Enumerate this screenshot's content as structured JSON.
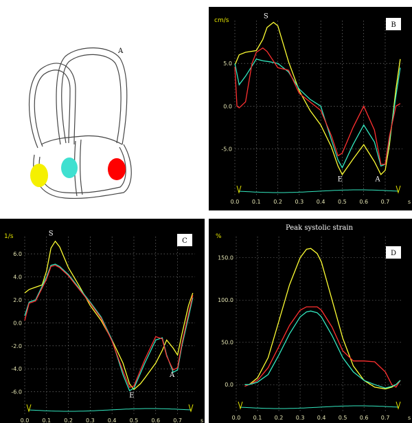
{
  "figure": {
    "panel_a": {
      "label": "A",
      "segment_colors": [
        "#f5f000",
        "#40e0d0",
        "#ff0000"
      ]
    },
    "panel_b": {
      "label": "B"
    },
    "panel_c": {
      "label": "C"
    },
    "panel_d": {
      "label": "D"
    }
  },
  "chart_data": [
    {
      "panel": "B",
      "type": "line",
      "title": "",
      "ylabel": "cm/s",
      "xlabel": "s",
      "xlim": [
        0,
        0.78
      ],
      "ylim": [
        -8.5,
        10
      ],
      "x_ticks": [
        0.0,
        0.1,
        0.2,
        0.3,
        0.4,
        0.5,
        0.6,
        0.7
      ],
      "y_ticks": [
        -5.0,
        0.0,
        5.0
      ],
      "annotations": [
        {
          "text": "S",
          "x": 0.145,
          "y": 10.3
        },
        {
          "text": "E",
          "x": 0.49,
          "y": -8.8
        },
        {
          "text": "A",
          "x": 0.665,
          "y": -8.8
        }
      ],
      "series": [
        {
          "color": "#ffff33",
          "x": [
            0,
            0.02,
            0.05,
            0.1,
            0.13,
            0.15,
            0.18,
            0.2,
            0.25,
            0.3,
            0.35,
            0.4,
            0.45,
            0.48,
            0.5,
            0.55,
            0.6,
            0.65,
            0.68,
            0.7,
            0.72,
            0.75,
            0.77
          ],
          "y": [
            4.8,
            6,
            6.3,
            6.5,
            7.8,
            9.2,
            9.8,
            9.4,
            5.2,
            1.8,
            -0.5,
            -2.2,
            -4.8,
            -7,
            -8,
            -6.2,
            -4.5,
            -6.5,
            -8,
            -7.5,
            -4.5,
            2,
            5.5
          ]
        },
        {
          "color": "#33e8c0",
          "x": [
            0,
            0.02,
            0.05,
            0.1,
            0.13,
            0.16,
            0.2,
            0.25,
            0.3,
            0.35,
            0.4,
            0.45,
            0.48,
            0.5,
            0.55,
            0.6,
            0.65,
            0.68,
            0.7,
            0.72,
            0.75,
            0.77
          ],
          "y": [
            5,
            2.5,
            3.5,
            5.5,
            5.3,
            5.2,
            5,
            4,
            2,
            0.8,
            0,
            -4,
            -6.3,
            -7.2,
            -4.5,
            -2.2,
            -4.2,
            -7,
            -6.8,
            -4,
            1.2,
            4.5
          ]
        },
        {
          "color": "#ff3030",
          "x": [
            0,
            0.01,
            0.02,
            0.05,
            0.08,
            0.1,
            0.13,
            0.15,
            0.2,
            0.25,
            0.3,
            0.35,
            0.4,
            0.45,
            0.48,
            0.5,
            0.55,
            0.6,
            0.65,
            0.68,
            0.7,
            0.72,
            0.75,
            0.77
          ],
          "y": [
            4.6,
            0,
            -0.2,
            0.5,
            5,
            6.3,
            6.8,
            6.4,
            4.5,
            4.2,
            1.5,
            0.5,
            -0.5,
            -3.5,
            -5.8,
            -5.5,
            -2.5,
            0,
            -2.8,
            -6.8,
            -6.8,
            -3.5,
            0,
            0.3
          ]
        }
      ]
    },
    {
      "panel": "C",
      "type": "line",
      "title": "",
      "ylabel": "1/s",
      "xlabel": "s",
      "xlim": [
        0,
        0.78
      ],
      "ylim": [
        -6.5,
        7.5
      ],
      "x_ticks": [
        0.0,
        0.1,
        0.2,
        0.3,
        0.4,
        0.5,
        0.6,
        0.7
      ],
      "y_ticks": [
        -6.0,
        -4.0,
        -2.0,
        0.0,
        2.0,
        4.0,
        6.0
      ],
      "annotations": [
        {
          "text": "S",
          "x": 0.12,
          "y": 7.6
        },
        {
          "text": "E",
          "x": 0.49,
          "y": -6.5
        },
        {
          "text": "A",
          "x": 0.675,
          "y": -4.7
        }
      ],
      "series": [
        {
          "color": "#ffff33",
          "x": [
            0,
            0.02,
            0.05,
            0.08,
            0.1,
            0.12,
            0.14,
            0.16,
            0.2,
            0.25,
            0.3,
            0.35,
            0.4,
            0.45,
            0.48,
            0.5,
            0.53,
            0.55,
            0.6,
            0.63,
            0.65,
            0.68,
            0.7,
            0.72,
            0.75,
            0.77
          ],
          "y": [
            2.6,
            2.9,
            3.1,
            3.3,
            4.5,
            6.5,
            7.1,
            6.6,
            4.8,
            3.2,
            1.5,
            0.2,
            -1.5,
            -3.5,
            -5.3,
            -5.8,
            -5.3,
            -4.8,
            -3.5,
            -2.4,
            -1.5,
            -2.2,
            -2.8,
            -1,
            1.5,
            2.6
          ]
        },
        {
          "color": "#33e8c0",
          "x": [
            0,
            0.02,
            0.05,
            0.1,
            0.12,
            0.14,
            0.16,
            0.2,
            0.25,
            0.3,
            0.35,
            0.4,
            0.45,
            0.48,
            0.5,
            0.55,
            0.6,
            0.63,
            0.65,
            0.68,
            0.7,
            0.72,
            0.75,
            0.77
          ],
          "y": [
            0.6,
            1.8,
            2,
            4,
            5,
            5.1,
            4.9,
            4.2,
            3,
            1.8,
            0.5,
            -1.5,
            -4.5,
            -5.9,
            -5.7,
            -3.5,
            -1.5,
            -1.3,
            -2.8,
            -4.3,
            -4.1,
            -2,
            0.5,
            2.2
          ]
        },
        {
          "color": "#ff3030",
          "x": [
            0,
            0.02,
            0.05,
            0.1,
            0.12,
            0.14,
            0.16,
            0.2,
            0.25,
            0.3,
            0.35,
            0.4,
            0.45,
            0.48,
            0.5,
            0.55,
            0.6,
            0.63,
            0.65,
            0.68,
            0.7,
            0.72,
            0.75,
            0.77
          ],
          "y": [
            0.2,
            1.7,
            1.9,
            3.8,
            4.9,
            5,
            4.8,
            4.1,
            2.9,
            1.7,
            0.4,
            -1.6,
            -4.2,
            -5.6,
            -5.5,
            -3.2,
            -1.2,
            -1.4,
            -2.9,
            -4.1,
            -3.9,
            -1.8,
            0.8,
            2.4
          ]
        }
      ]
    },
    {
      "panel": "D",
      "type": "line",
      "title": "Peak systolic strain",
      "ylabel": "%",
      "xlabel": "s",
      "xlim": [
        0,
        0.78
      ],
      "ylim": [
        -12,
        175
      ],
      "x_ticks": [
        0.0,
        0.1,
        0.2,
        0.3,
        0.4,
        0.5,
        0.6,
        0.7
      ],
      "y_ticks": [
        0.0,
        50.0,
        100.0,
        150.0
      ],
      "annotations": [],
      "series": [
        {
          "color": "#ffff33",
          "x": [
            0.04,
            0.06,
            0.1,
            0.15,
            0.2,
            0.25,
            0.3,
            0.33,
            0.35,
            0.38,
            0.4,
            0.45,
            0.5,
            0.55,
            0.6,
            0.65,
            0.7,
            0.73,
            0.75,
            0.77
          ],
          "y": [
            0,
            0,
            8,
            32,
            75,
            118,
            150,
            160,
            161,
            155,
            145,
            100,
            55,
            22,
            5,
            -3,
            -5,
            -3,
            0,
            5
          ]
        },
        {
          "color": "#ff3030",
          "x": [
            0.04,
            0.06,
            0.1,
            0.15,
            0.2,
            0.25,
            0.3,
            0.33,
            0.35,
            0.38,
            0.4,
            0.45,
            0.5,
            0.55,
            0.6,
            0.65,
            0.7,
            0.73,
            0.75,
            0.77
          ],
          "y": [
            -2,
            0,
            5,
            20,
            45,
            70,
            88,
            92,
            92,
            92,
            88,
            68,
            40,
            28,
            28,
            27,
            15,
            0,
            -3,
            5
          ]
        },
        {
          "color": "#33e8c0",
          "x": [
            0.04,
            0.06,
            0.1,
            0.15,
            0.2,
            0.25,
            0.3,
            0.33,
            0.35,
            0.38,
            0.4,
            0.45,
            0.5,
            0.55,
            0.6,
            0.65,
            0.7,
            0.73,
            0.75,
            0.77
          ],
          "y": [
            0,
            0,
            3,
            12,
            35,
            60,
            80,
            86,
            87,
            85,
            80,
            58,
            32,
            15,
            5,
            0,
            -4,
            -2,
            0,
            5
          ]
        }
      ]
    }
  ]
}
